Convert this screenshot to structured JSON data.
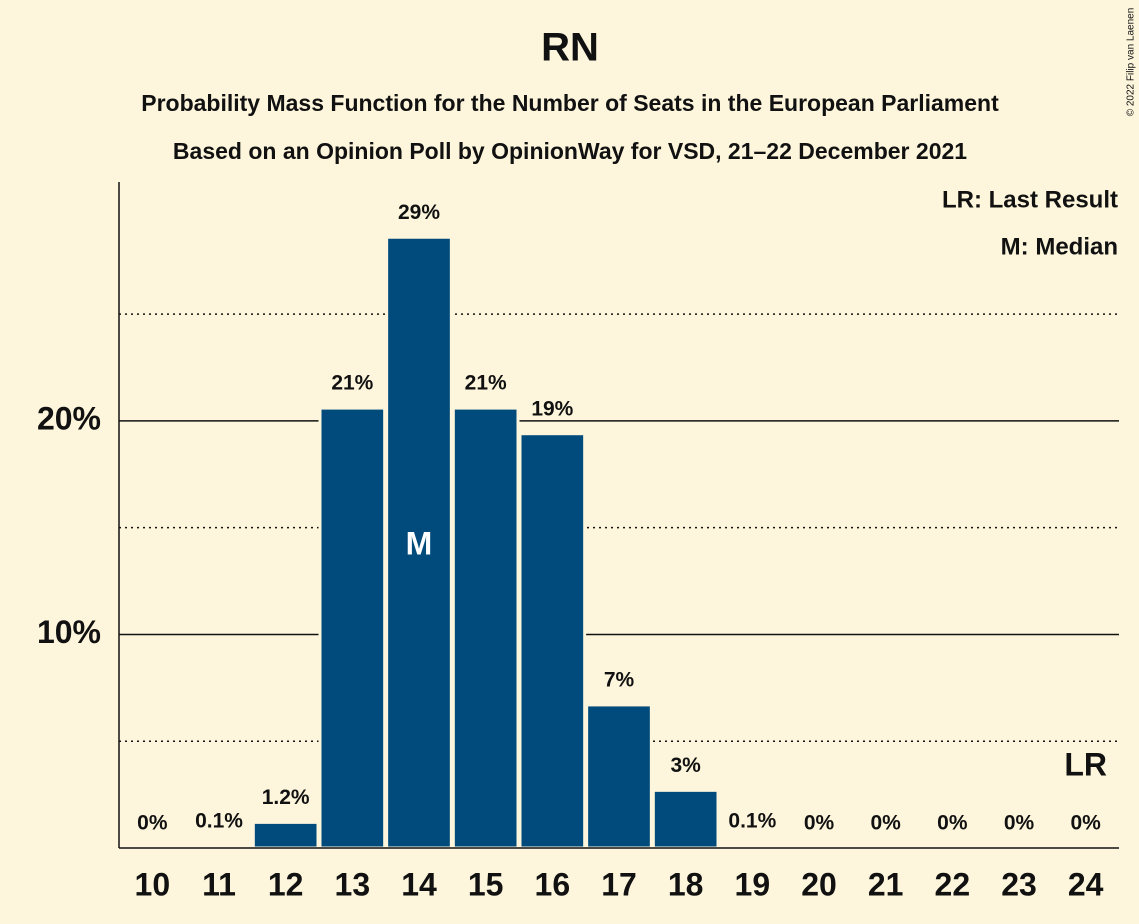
{
  "chart_data": {
    "type": "bar",
    "title": "RN",
    "subtitle": "Probability Mass Function for the Number of Seats in the European Parliament",
    "subtitle2": "Based on an Opinion Poll by OpinionWay for VSD, 21–22 December 2021",
    "credit": "© 2022 Filip van Laenen",
    "categories": [
      "10",
      "11",
      "12",
      "13",
      "14",
      "15",
      "16",
      "17",
      "18",
      "19",
      "20",
      "21",
      "22",
      "23",
      "24"
    ],
    "values": [
      0,
      0.1,
      1.2,
      20.6,
      28.6,
      20.6,
      19.4,
      6.7,
      2.7,
      0.1,
      0,
      0,
      0,
      0,
      0
    ],
    "value_labels": [
      "0%",
      "0.1%",
      "1.2%",
      "21%",
      "29%",
      "21%",
      "19%",
      "7%",
      "3%",
      "0.1%",
      "0%",
      "0%",
      "0%",
      "0%",
      "0%"
    ],
    "color": "#004a7c",
    "ylim": [
      0,
      31
    ],
    "yticks": [
      {
        "value": 10,
        "label": "10%"
      },
      {
        "value": 20,
        "label": "20%"
      }
    ],
    "minor_gridlines": [
      5,
      15,
      25
    ],
    "grid": true,
    "annotations": [
      {
        "text": "M",
        "category": "14"
      },
      {
        "text": "LR",
        "category": "24"
      }
    ],
    "legend": [
      "LR: Last Result",
      "M: Median"
    ],
    "legend_position": "top-right"
  }
}
